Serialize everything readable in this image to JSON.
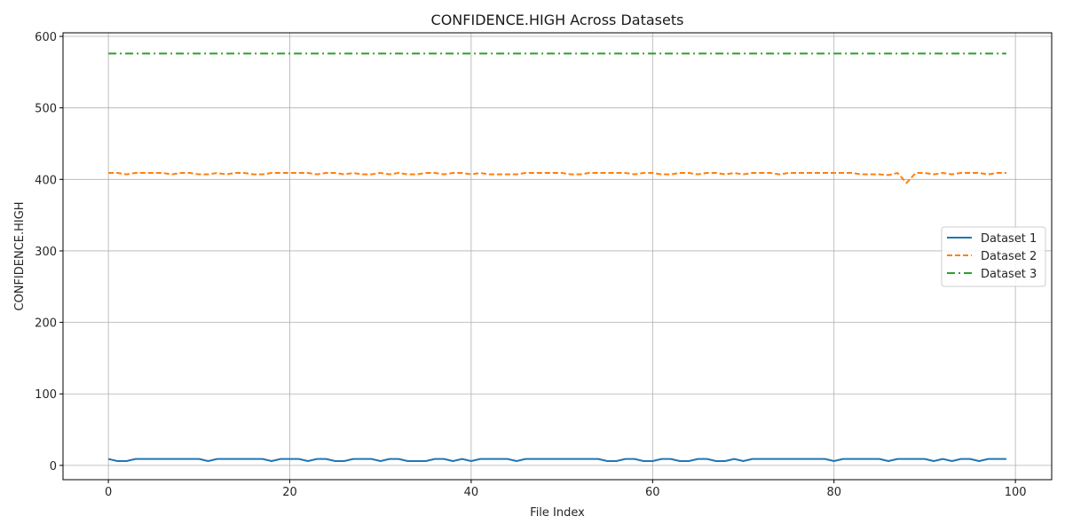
{
  "chart_data": {
    "type": "line",
    "title": "CONFIDENCE.HIGH Across Datasets",
    "xlabel": "File Index",
    "ylabel": "CONFIDENCE.HIGH",
    "xlim": [
      -5,
      104
    ],
    "ylim": [
      -20,
      605
    ],
    "xticks": [
      0,
      20,
      40,
      60,
      80,
      100
    ],
    "yticks": [
      0,
      100,
      200,
      300,
      400,
      500,
      600
    ],
    "grid": true,
    "legend_position": "center-right",
    "series": [
      {
        "name": "Dataset 1",
        "color": "#1f77b4",
        "style": "solid",
        "values": [
          9,
          6,
          6,
          9,
          9,
          9,
          9,
          9,
          9,
          9,
          9,
          6,
          9,
          9,
          9,
          9,
          9,
          9,
          6,
          9,
          9,
          9,
          6,
          9,
          9,
          6,
          6,
          9,
          9,
          9,
          6,
          9,
          9,
          6,
          6,
          6,
          9,
          9,
          6,
          9,
          6,
          9,
          9,
          9,
          9,
          6,
          9,
          9,
          9,
          9,
          9,
          9,
          9,
          9,
          9,
          6,
          6,
          9,
          9,
          6,
          6,
          9,
          9,
          6,
          6,
          9,
          9,
          6,
          6,
          9,
          6,
          9,
          9,
          9,
          9,
          9,
          9,
          9,
          9,
          9,
          6,
          9,
          9,
          9,
          9,
          9,
          6,
          9,
          9,
          9,
          9,
          6,
          9,
          6,
          9,
          9,
          6,
          9,
          9,
          9
        ]
      },
      {
        "name": "Dataset 2",
        "color": "#ff7f0e",
        "style": "dashed",
        "values": [
          409,
          409,
          407,
          409,
          409,
          409,
          409,
          407,
          409,
          409,
          407,
          407,
          409,
          407,
          409,
          409,
          407,
          407,
          409,
          409,
          409,
          409,
          409,
          407,
          409,
          409,
          407,
          409,
          407,
          407,
          409,
          407,
          409,
          407,
          407,
          409,
          409,
          407,
          409,
          409,
          407,
          409,
          407,
          407,
          407,
          407,
          409,
          409,
          409,
          409,
          409,
          407,
          407,
          409,
          409,
          409,
          409,
          409,
          407,
          409,
          409,
          407,
          407,
          409,
          409,
          407,
          409,
          409,
          407,
          409,
          407,
          409,
          409,
          409,
          407,
          409,
          409,
          409,
          409,
          409,
          409,
          409,
          409,
          407,
          407,
          407,
          406,
          409,
          395,
          409,
          409,
          407,
          409,
          407,
          409,
          409,
          409,
          407,
          409,
          409
        ]
      },
      {
        "name": "Dataset 3",
        "color": "#2ca02c",
        "style": "dashdot",
        "values": [
          576,
          576,
          576,
          576,
          576,
          576,
          576,
          576,
          576,
          576,
          576,
          576,
          576,
          576,
          576,
          576,
          576,
          576,
          576,
          576,
          576,
          576,
          576,
          576,
          576,
          576,
          576,
          576,
          576,
          576,
          576,
          576,
          576,
          576,
          576,
          576,
          576,
          576,
          576,
          576,
          576,
          576,
          576,
          576,
          576,
          576,
          576,
          576,
          576,
          576,
          576,
          576,
          576,
          576,
          576,
          576,
          576,
          576,
          576,
          576,
          576,
          576,
          576,
          576,
          576,
          576,
          576,
          576,
          576,
          576,
          576,
          576,
          576,
          576,
          576,
          576,
          576,
          576,
          576,
          576,
          576,
          576,
          576,
          576,
          576,
          576,
          576,
          576,
          576,
          576,
          576,
          576,
          576,
          576,
          576,
          576,
          576,
          576,
          576,
          576
        ]
      }
    ]
  }
}
